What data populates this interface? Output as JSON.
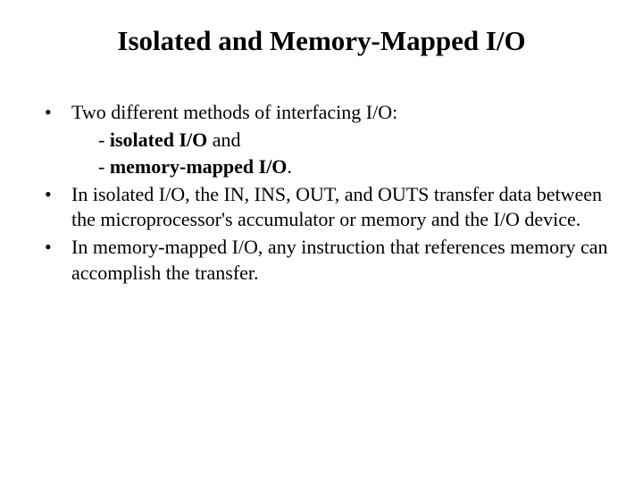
{
  "slide": {
    "title": "Isolated and Memory-Mapped I/O",
    "bullets": [
      {
        "text": "Two different methods of interfacing I/O:",
        "sublines": [
          {
            "prefix": "- ",
            "bold": "isolated I/O",
            "suffix": " and"
          },
          {
            "prefix": "- ",
            "bold": "memory-mapped I/O",
            "suffix": "."
          }
        ]
      },
      {
        "text": "In isolated I/O, the IN, INS, OUT, and OUTS transfer data between the microprocessor's accumulator or memory and the I/O device."
      },
      {
        "text": "In memory-mapped I/O, any instruction that references memory can accomplish the transfer."
      }
    ]
  },
  "styling": {
    "background_color": "#ffffff",
    "text_color": "#000000",
    "title_fontsize": 31,
    "body_fontsize": 22,
    "font_family": "Times New Roman"
  }
}
